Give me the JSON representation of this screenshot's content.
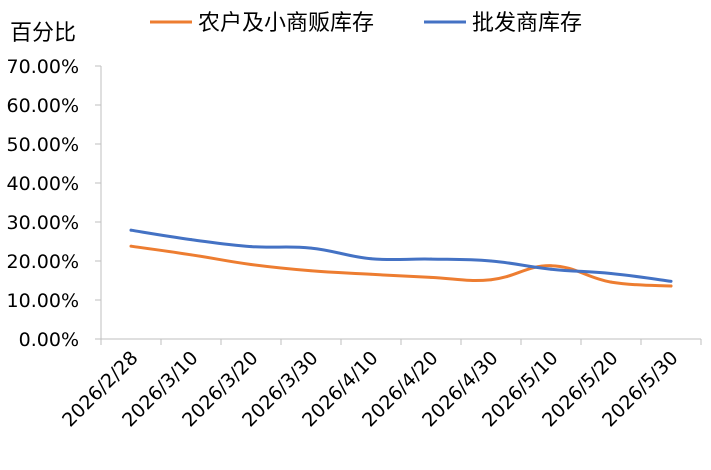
{
  "chart_data": {
    "type": "line",
    "unit_label": "百分比",
    "categories": [
      "2026/2/28",
      "2026/3/10",
      "2026/3/20",
      "2026/3/30",
      "2026/4/10",
      "2026/4/20",
      "2026/4/30",
      "2026/5/10",
      "2026/5/20",
      "2026/5/30"
    ],
    "y_ticks": [
      "0.00%",
      "10.00%",
      "20.00%",
      "30.00%",
      "40.00%",
      "50.00%",
      "60.00%",
      "70.00%"
    ],
    "ylim": [
      0,
      70
    ],
    "legend_position": "top",
    "grid": "none",
    "series": [
      {
        "name": "农户及小商贩库存",
        "color": "#ED7D31",
        "points": [
          {
            "x": 0.5,
            "y": 23.8
          },
          {
            "x": 1.5,
            "y": 21.6
          },
          {
            "x": 2.5,
            "y": 19.1
          },
          {
            "x": 3.5,
            "y": 17.5
          },
          {
            "x": 4.5,
            "y": 16.6
          },
          {
            "x": 5.5,
            "y": 15.8
          },
          {
            "x": 6.5,
            "y": 15.2
          },
          {
            "x": 7.5,
            "y": 18.8
          },
          {
            "x": 8.5,
            "y": 14.6
          },
          {
            "x": 9.5,
            "y": 13.6
          }
        ]
      },
      {
        "name": "批发商库存",
        "color": "#4472C4",
        "points": [
          {
            "x": 0.5,
            "y": 27.9
          },
          {
            "x": 1.5,
            "y": 25.5
          },
          {
            "x": 2.5,
            "y": 23.7
          },
          {
            "x": 3.5,
            "y": 23.3
          },
          {
            "x": 4.5,
            "y": 20.6
          },
          {
            "x": 5.5,
            "y": 20.5
          },
          {
            "x": 6.5,
            "y": 20.0
          },
          {
            "x": 7.5,
            "y": 17.9
          },
          {
            "x": 8.5,
            "y": 16.8
          },
          {
            "x": 9.5,
            "y": 14.8
          }
        ]
      }
    ]
  }
}
